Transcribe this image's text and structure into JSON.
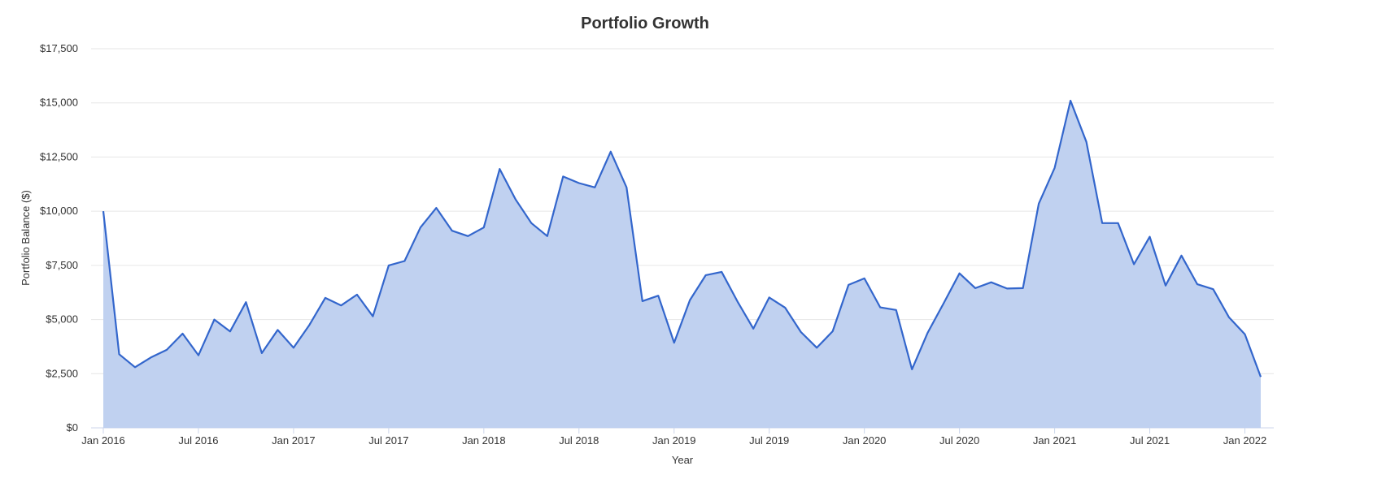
{
  "chart_data": {
    "type": "area",
    "title": "Portfolio Growth",
    "xlabel": "Year",
    "ylabel": "Portfolio Balance ($)",
    "ylim": [
      0,
      17500
    ],
    "y_ticks": [
      0,
      2500,
      5000,
      7500,
      10000,
      12500,
      15000,
      17500
    ],
    "y_tick_labels": [
      "$0",
      "$2,500",
      "$5,000",
      "$7,500",
      "$10,000",
      "$12,500",
      "$15,000",
      "$17,500"
    ],
    "x_ticks": [
      "2016-01",
      "2016-07",
      "2017-01",
      "2017-07",
      "2018-01",
      "2018-07",
      "2019-01",
      "2019-07",
      "2020-01",
      "2020-07",
      "2021-01",
      "2021-07",
      "2022-01"
    ],
    "x_tick_labels": [
      "Jan 2016",
      "Jul 2016",
      "Jan 2017",
      "Jul 2017",
      "Jan 2018",
      "Jul 2018",
      "Jan 2019",
      "Jul 2019",
      "Jan 2020",
      "Jul 2020",
      "Jan 2021",
      "Jul 2021",
      "Jan 2022"
    ],
    "grid": true,
    "color": "#3366cc",
    "fill_color": "#c0d1f0",
    "x": [
      "2016-01",
      "2016-02",
      "2016-03",
      "2016-04",
      "2016-05",
      "2016-06",
      "2016-07",
      "2016-08",
      "2016-09",
      "2016-10",
      "2016-11",
      "2016-12",
      "2017-01",
      "2017-02",
      "2017-03",
      "2017-04",
      "2017-05",
      "2017-06",
      "2017-07",
      "2017-08",
      "2017-09",
      "2017-10",
      "2017-11",
      "2017-12",
      "2018-01",
      "2018-02",
      "2018-03",
      "2018-04",
      "2018-05",
      "2018-06",
      "2018-07",
      "2018-08",
      "2018-09",
      "2018-10",
      "2018-11",
      "2018-12",
      "2019-01",
      "2019-02",
      "2019-03",
      "2019-04",
      "2019-05",
      "2019-06",
      "2019-07",
      "2019-08",
      "2019-09",
      "2019-10",
      "2019-11",
      "2019-12",
      "2020-01",
      "2020-02",
      "2020-03",
      "2020-04",
      "2020-05",
      "2020-06",
      "2020-07",
      "2020-08",
      "2020-09",
      "2020-10",
      "2020-11",
      "2020-12",
      "2021-01",
      "2021-02",
      "2021-03",
      "2021-04",
      "2021-05",
      "2021-06",
      "2021-07",
      "2021-08",
      "2021-09",
      "2021-10",
      "2021-11",
      "2021-12",
      "2022-01",
      "2022-02"
    ],
    "values": [
      10000,
      3400,
      2800,
      3250,
      3600,
      4350,
      3350,
      5000,
      4450,
      5800,
      3450,
      4520,
      3700,
      4750,
      6000,
      5650,
      6150,
      5150,
      7500,
      7700,
      9250,
      10150,
      9100,
      8850,
      9250,
      11950,
      10550,
      9450,
      8850,
      11600,
      11300,
      11100,
      12750,
      11100,
      5850,
      6100,
      3930,
      5900,
      7050,
      7200,
      5830,
      4580,
      6020,
      5550,
      4420,
      3700,
      4460,
      6600,
      6900,
      5560,
      5440,
      2700,
      4400,
      5750,
      7130,
      6450,
      6720,
      6430,
      6450,
      10350,
      12000,
      15100,
      13200,
      9450,
      9450,
      7550,
      8820,
      6570,
      7950,
      6630,
      6400,
      5100,
      4320,
      2350
    ]
  }
}
